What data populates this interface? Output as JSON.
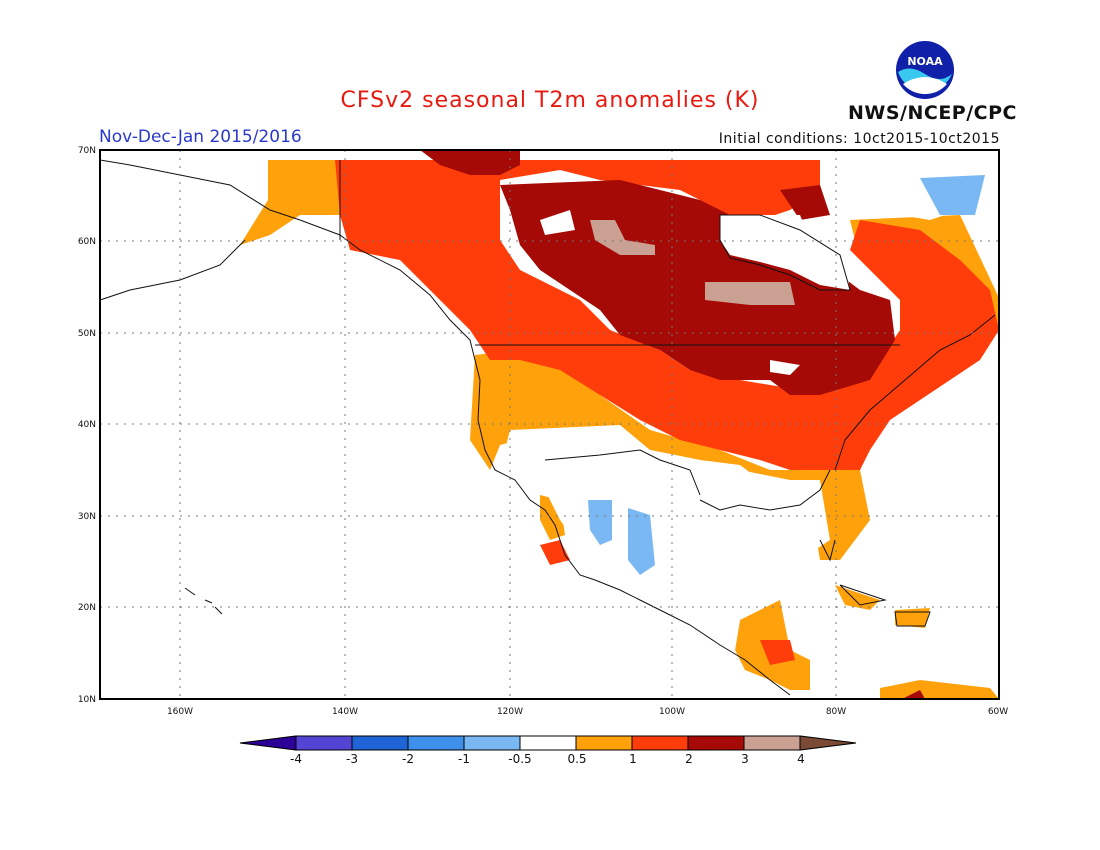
{
  "header": {
    "title": "CFSv2 seasonal T2m anomalies (K)",
    "period": "Nov-Dec-Jan 2015/2016",
    "initial_conditions": "Initial conditions: 10ct2015-10ct2015",
    "agency": "NWS/NCEP/CPC",
    "logo_text": "NOAA"
  },
  "map": {
    "lon_range": [
      -172,
      -60
    ],
    "lat_range": [
      10,
      70
    ],
    "lat_ticks": [
      "70N",
      "60N",
      "50N",
      "40N",
      "30N",
      "20N",
      "10N"
    ],
    "lon_ticks": [
      "160W",
      "140W",
      "120W",
      "100W",
      "80W",
      "60W"
    ],
    "gridlines": "dotted"
  },
  "colorbar": {
    "labels": [
      "-4",
      "-3",
      "-2",
      "-1",
      "-0.5",
      "0.5",
      "1",
      "2",
      "3",
      "4"
    ],
    "colors": [
      "#2c0096",
      "#5444d4",
      "#1e64d6",
      "#3e90ea",
      "#7ab8f4",
      "#ffffff",
      "#ffa10a",
      "#ff3d0a",
      "#a50a06",
      "#c9a092",
      "#7a4a34"
    ],
    "units": "K"
  }
}
